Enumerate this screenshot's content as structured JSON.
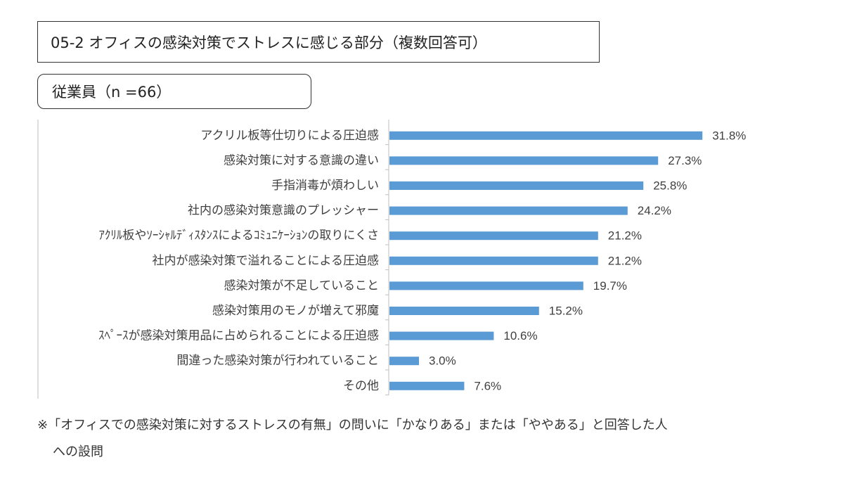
{
  "title": "05-2 オフィスの感染対策でストレスに感じる部分（複数回答可）",
  "group_label": "従業員（n =66）",
  "chart_data": {
    "type": "bar",
    "orientation": "horizontal",
    "categories": [
      "アクリル板等仕切りによる圧迫感",
      "感染対策に対する意識の違い",
      "手指消毒が煩わしい",
      "社内の感染対策意識のプレッシャー",
      "ｱｸﾘﾙ板やｿｰｼｬﾙﾃﾞｨｽﾀﾝｽによるｺﾐｭﾆｹｰｼｮﾝの取りにくさ",
      "社内が感染対策で溢れることによる圧迫感",
      "感染対策が不足していること",
      "感染対策用のモノが増えて邪魔",
      "ｽﾍﾟｰｽが感染対策用品に占められることによる圧迫感",
      "間違った感染対策が行われていること",
      "その他"
    ],
    "values": [
      31.8,
      27.3,
      25.8,
      24.2,
      21.2,
      21.2,
      19.7,
      15.2,
      10.6,
      3.0,
      7.6
    ],
    "value_labels": [
      "31.8%",
      "27.3%",
      "25.8%",
      "24.2%",
      "21.2%",
      "21.2%",
      "19.7%",
      "15.2%",
      "10.6%",
      "3.0%",
      "7.6%"
    ],
    "unit": "%",
    "xlim": [
      0,
      35
    ],
    "grid": false,
    "bar_color": "#5b9bd5"
  },
  "footnote": {
    "line1": "※「オフィスでの感染対策に対するストレスの有無」の問いに「かなりある」または「ややある」と回答した人",
    "line2": "への設問"
  }
}
